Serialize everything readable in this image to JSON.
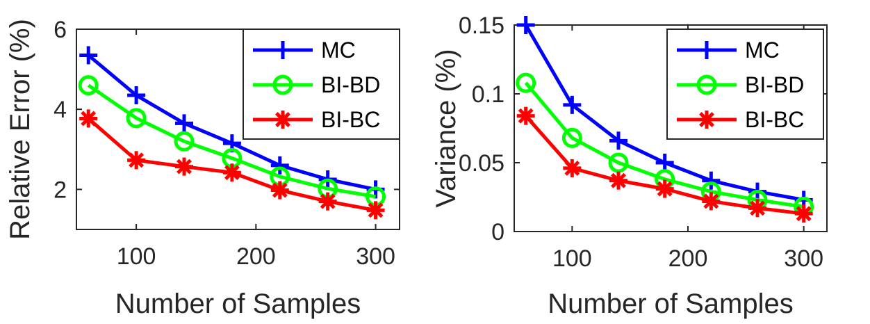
{
  "chart_data": [
    {
      "type": "line",
      "xlabel": "Number of Samples",
      "ylabel": "Relative Error (%)",
      "xlim": [
        50,
        320
      ],
      "ylim": [
        1,
        6
      ],
      "xticks": [
        100,
        200,
        300
      ],
      "yticks": [
        2,
        4,
        6
      ],
      "grid": false,
      "legend_position": "top-right",
      "x": [
        60,
        100,
        140,
        180,
        220,
        260,
        300
      ],
      "series": [
        {
          "name": "MC",
          "color": "#0000ff",
          "marker": "plus",
          "values": [
            5.35,
            4.35,
            3.65,
            3.15,
            2.6,
            2.25,
            2.0
          ]
        },
        {
          "name": "BI-BD",
          "color": "#00ff00",
          "marker": "circle",
          "values": [
            4.6,
            3.78,
            3.2,
            2.78,
            2.32,
            2.02,
            1.82
          ]
        },
        {
          "name": "BI-BC",
          "color": "#ff0000",
          "marker": "asterisk",
          "values": [
            3.77,
            2.73,
            2.57,
            2.42,
            1.98,
            1.7,
            1.48
          ]
        }
      ]
    },
    {
      "type": "line",
      "xlabel": "Number of Samples",
      "ylabel": "Variance (%)",
      "xlim": [
        50,
        320
      ],
      "ylim": [
        0,
        0.15
      ],
      "xticks": [
        100,
        200,
        300
      ],
      "yticks": [
        0,
        0.05,
        0.1,
        0.15
      ],
      "ytick_labels": [
        "0",
        "0.05",
        "0.1",
        "0.15"
      ],
      "grid": false,
      "legend_position": "top-right",
      "x": [
        60,
        100,
        140,
        180,
        220,
        260,
        300
      ],
      "series": [
        {
          "name": "MC",
          "color": "#0000ff",
          "marker": "plus",
          "values": [
            0.15,
            0.092,
            0.066,
            0.05,
            0.037,
            0.029,
            0.023
          ]
        },
        {
          "name": "BI-BD",
          "color": "#00ff00",
          "marker": "circle",
          "values": [
            0.108,
            0.068,
            0.05,
            0.038,
            0.029,
            0.023,
            0.018
          ]
        },
        {
          "name": "BI-BC",
          "color": "#ff0000",
          "marker": "asterisk",
          "values": [
            0.084,
            0.046,
            0.037,
            0.031,
            0.022,
            0.017,
            0.013
          ]
        }
      ]
    }
  ]
}
